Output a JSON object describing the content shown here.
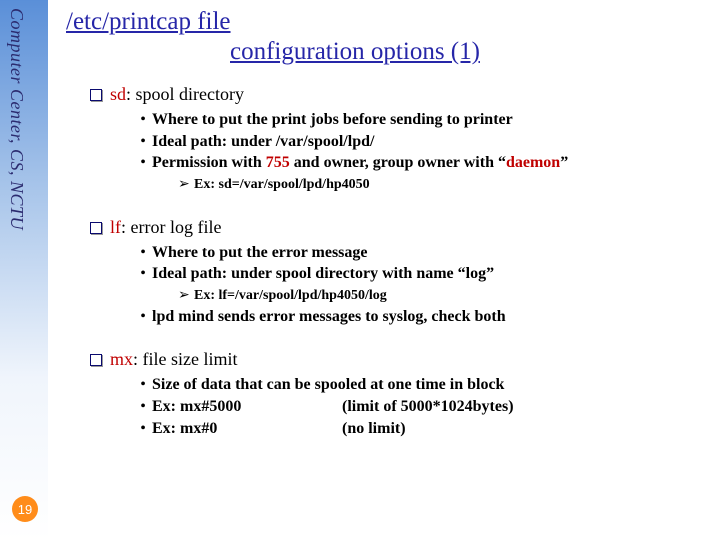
{
  "sidebar": {
    "label": "Computer Center, CS, NCTU",
    "text_color": "#2b2b6f",
    "gradient_top": "#5a8fd8",
    "gradient_bottom": "#ffffff"
  },
  "page_number": "19",
  "title": {
    "line1": "/etc/printcap file",
    "line2": "configuration options (1)",
    "color": "#2626a8",
    "fontsize": 25
  },
  "sections": [
    {
      "keyword": "sd",
      "desc": ": spool directory",
      "bullets": [
        {
          "text": "Where to put the print jobs before sending to printer"
        },
        {
          "text": "Ideal path: under /var/spool/lpd/"
        },
        {
          "prefix": "Permission with ",
          "red1": "755",
          "mid": " and owner, group owner with ",
          "quote_open": "“",
          "red2": "daemon",
          "quote_close": "”"
        }
      ],
      "subs": [
        {
          "text": "Ex: sd=/var/spool/lpd/hp4050"
        }
      ]
    },
    {
      "keyword": "lf",
      "desc": ": error log file",
      "bullets": [
        {
          "text": "Where to put the error message"
        },
        {
          "prefix": "Ideal path: under spool directory with name ",
          "quote_open": "“",
          "plainq": "log",
          "quote_close": "”"
        }
      ],
      "subs": [
        {
          "text": "Ex: lf=/var/spool/lpd/hp4050/log"
        }
      ],
      "bullets_after": [
        {
          "text": "lpd mind sends error messages to syslog, check both"
        }
      ]
    },
    {
      "keyword": "mx",
      "desc": ": file size limit",
      "bullets": [
        {
          "text": "Size of data that can be spooled at one time in block"
        },
        {
          "col1": "Ex: mx#5000",
          "col2": "(limit of 5000*1024bytes)"
        },
        {
          "col1": "Ex: mx#0",
          "col2": "(no limit)"
        }
      ]
    }
  ],
  "colors": {
    "keyword_red": "#c00000",
    "body_text": "#000000",
    "box_border": "#0a0a6e",
    "page_badge": "#ff8c1a"
  }
}
